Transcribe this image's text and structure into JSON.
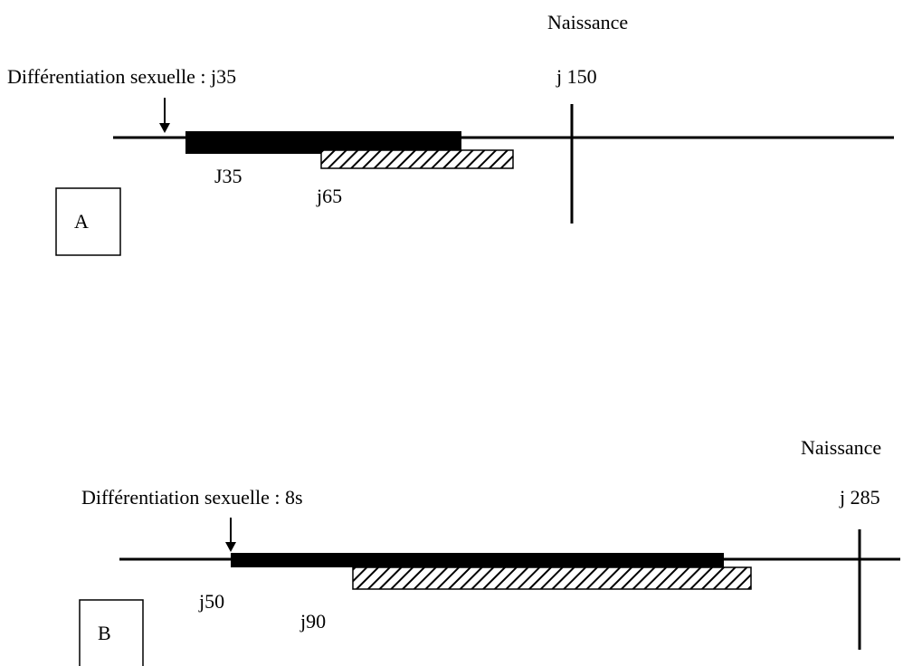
{
  "panels": [
    {
      "label": "A",
      "differentiation": "Différentiation sexuelle : j35",
      "birth": "Naissance",
      "birth_day": "j 150",
      "bar_start": "J35",
      "hatched_start": "j65"
    },
    {
      "label": "B",
      "differentiation": "Différentiation sexuelle : 8s",
      "birth": "Naissance",
      "birth_day": "j 285",
      "bar_start": "j50",
      "hatched_start": "j90"
    }
  ]
}
